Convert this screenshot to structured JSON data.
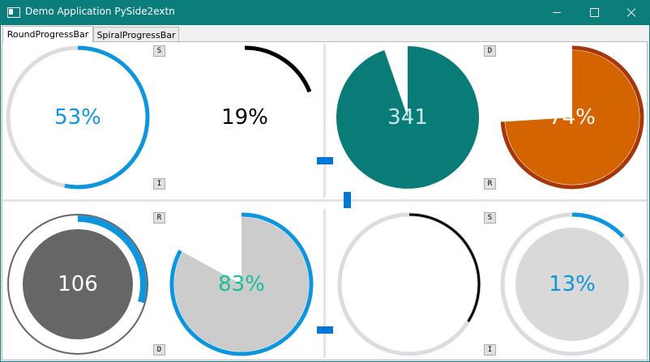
{
  "window": {
    "title": "Demo Application PySide2extn"
  },
  "tabs": [
    {
      "label": "RoundProgressBar",
      "active": true
    },
    {
      "label": "SpiralProgressBar",
      "active": false
    }
  ],
  "gauges": [
    {
      "id": "g1",
      "style": "donut",
      "value_text": "53%",
      "fraction": 0.53,
      "text_color": "#0d95dd",
      "bar_color": "#0d95dd",
      "track_color": "#dcdcdc",
      "fill_color": "",
      "buttons": [
        "S",
        "I"
      ]
    },
    {
      "id": "g2",
      "style": "line",
      "value_text": "19%",
      "fraction": 0.19,
      "text_color": "#000000",
      "bar_color": "#000000",
      "track_color": "",
      "fill_color": "",
      "buttons": []
    },
    {
      "id": "g3",
      "style": "pie",
      "value_text": "341",
      "fraction": 0.947,
      "text_color": "#c9e8e5",
      "bar_color": "#0a7c78",
      "track_color": "",
      "fill_color": "",
      "buttons": [
        "D",
        "R"
      ]
    },
    {
      "id": "g4",
      "style": "pie-ring",
      "value_text": "74%",
      "fraction": 0.74,
      "text_color": "#ffffff",
      "bar_color": "#a83507",
      "track_color": "",
      "fill_color": "#d36400",
      "buttons": []
    },
    {
      "id": "g5",
      "style": "hybrid",
      "value_text": "106",
      "fraction": 0.294,
      "text_color": "#ffffff",
      "bar_color": "#0d95dd",
      "track_color": "#666666",
      "fill_color": "#666666",
      "buttons": [
        "R",
        "D"
      ]
    },
    {
      "id": "g6",
      "style": "pie-ring",
      "value_text": "83%",
      "fraction": 0.83,
      "text_color": "#1abc9c",
      "bar_color": "#0d95dd",
      "track_color": "",
      "fill_color": "#cccccc",
      "buttons": []
    },
    {
      "id": "g7",
      "style": "donut",
      "value_text": "",
      "fraction": 0.34,
      "text_color": "#000000",
      "bar_color": "#000000",
      "track_color": "#dcdcdc",
      "fill_color": "",
      "buttons": [
        "S",
        "I"
      ]
    },
    {
      "id": "g8",
      "style": "ring-fill",
      "value_text": "13%",
      "fraction": 0.13,
      "text_color": "#0d95dd",
      "bar_color": "#0d95dd",
      "track_color": "#dcdcdc",
      "fill_color": "#d9d9d9",
      "buttons": []
    }
  ]
}
